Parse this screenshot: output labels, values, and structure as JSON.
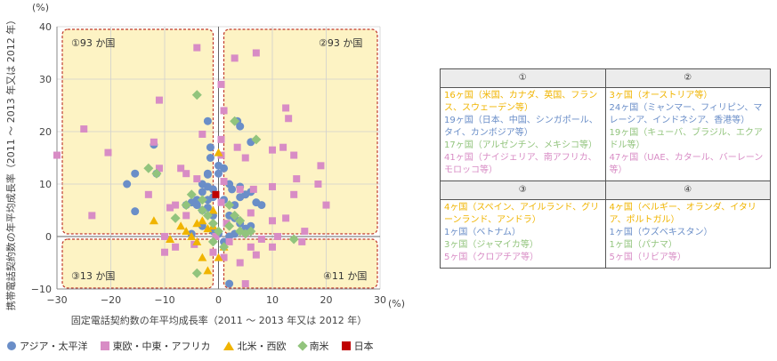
{
  "chart_data": {
    "type": "scatter",
    "xlabel": "固定電話契約数の年平均成長率（2011 ～ 2013 年又は 2012 年）",
    "ylabel": "携帯電話契約数の年平均成長率（2011 ～ 2013 年又は 2012 年）",
    "x_unit": "(%)",
    "y_unit": "(%)",
    "xlim": [
      -30,
      30
    ],
    "ylim": [
      -10,
      40
    ],
    "xticks": [
      "−30",
      "−20",
      "−10",
      "0",
      "10",
      "20",
      "30"
    ],
    "yticks": [
      "−10",
      "0",
      "10",
      "20",
      "30",
      "40"
    ],
    "grid": true,
    "legend_position": "bottom",
    "quadrant_labels": [
      "①93 か国",
      "②93 か国",
      "③13 か国",
      "④11 か国"
    ],
    "series": [
      {
        "name": "アジア・太平洋",
        "marker": "circle",
        "color": "#6a8ec8",
        "points": [
          [
            -12,
            17.5
          ],
          [
            -11.5,
            12
          ],
          [
            -15.5,
            12
          ],
          [
            -17,
            10
          ],
          [
            -15.5,
            4.8
          ],
          [
            -2,
            22
          ],
          [
            -1.5,
            17
          ],
          [
            -1.5,
            15
          ],
          [
            -2,
            12
          ],
          [
            -2,
            11.8
          ],
          [
            -3,
            10
          ],
          [
            -2,
            9.5
          ],
          [
            -1,
            9
          ],
          [
            -3,
            8.5
          ],
          [
            -2,
            7
          ],
          [
            -4,
            7
          ],
          [
            -1,
            7.5
          ],
          [
            -5,
            6.5
          ],
          [
            -4,
            6
          ],
          [
            -2,
            5.5
          ],
          [
            -6,
            6
          ],
          [
            -3,
            5
          ],
          [
            0,
            12
          ],
          [
            0,
            13.5
          ],
          [
            1,
            13
          ],
          [
            2,
            10
          ],
          [
            2.5,
            9
          ],
          [
            4,
            9.5
          ],
          [
            6,
            8.5
          ],
          [
            5,
            8
          ],
          [
            4,
            7.5
          ],
          [
            7,
            6.5
          ],
          [
            8,
            6
          ],
          [
            1,
            7
          ],
          [
            3,
            6
          ],
          [
            -1,
            4
          ],
          [
            2,
            4
          ],
          [
            3,
            3.5
          ],
          [
            4,
            2.5
          ],
          [
            6,
            2
          ],
          [
            -1,
            1
          ],
          [
            0,
            0.5
          ],
          [
            -3,
            2
          ],
          [
            1,
            -1
          ],
          [
            2,
            0
          ],
          [
            3,
            0.5
          ],
          [
            5,
            1.5
          ],
          [
            -5,
            0.5
          ],
          [
            3.5,
            22
          ],
          [
            4,
            21
          ],
          [
            6,
            18
          ],
          [
            2,
            -9
          ]
        ]
      },
      {
        "name": "東欧・中東・アフリカ",
        "marker": "square",
        "color": "#d88cc5",
        "points": [
          [
            -30,
            15.5
          ],
          [
            -25,
            20.5
          ],
          [
            -23.5,
            4
          ],
          [
            -20.5,
            16
          ],
          [
            -11,
            26
          ],
          [
            -12,
            18
          ],
          [
            -11,
            13
          ],
          [
            -13,
            8
          ],
          [
            -4,
            36
          ],
          [
            -4,
            11
          ],
          [
            -3,
            19.5
          ],
          [
            -6,
            12
          ],
          [
            -7,
            13
          ],
          [
            -8,
            6
          ],
          [
            -6,
            4
          ],
          [
            -9,
            5.5
          ],
          [
            -10,
            0
          ],
          [
            -10,
            -3
          ],
          [
            -8,
            -2
          ],
          [
            -4.5,
            -1.5
          ],
          [
            -1,
            -3
          ],
          [
            0.5,
            29
          ],
          [
            1,
            24
          ],
          [
            0.5,
            18.5
          ],
          [
            0.5,
            15.5
          ],
          [
            1,
            10.5
          ],
          [
            0.5,
            6.5
          ],
          [
            1.5,
            2.5
          ],
          [
            2,
            -1
          ],
          [
            1,
            -4
          ],
          [
            3,
            34
          ],
          [
            7,
            35
          ],
          [
            3.5,
            17
          ],
          [
            5,
            15
          ],
          [
            4,
            9
          ],
          [
            6,
            4.5
          ],
          [
            6,
            -2
          ],
          [
            4,
            -5
          ],
          [
            5,
            -9
          ],
          [
            8,
            -0.5
          ],
          [
            10,
            9.5
          ],
          [
            10,
            3
          ],
          [
            11,
            0
          ],
          [
            12.5,
            24.5
          ],
          [
            13,
            22.5
          ],
          [
            12,
            17
          ],
          [
            14,
            15.5
          ],
          [
            14.5,
            11
          ],
          [
            14,
            8
          ],
          [
            12.5,
            3.5
          ],
          [
            10,
            16.5
          ],
          [
            19,
            13.5
          ],
          [
            18.5,
            10
          ],
          [
            20,
            6
          ],
          [
            16,
            1
          ],
          [
            15.5,
            -1
          ],
          [
            7,
            -3.5
          ],
          [
            10,
            -2
          ],
          [
            6.5,
            9
          ],
          [
            5,
            0.5
          ],
          [
            -0.5,
            0
          ]
        ]
      },
      {
        "name": "北米・西欧",
        "marker": "triangle",
        "color": "#f0b400",
        "points": [
          [
            -12,
            3
          ],
          [
            -9,
            -0.5
          ],
          [
            -7,
            2
          ],
          [
            -5,
            0
          ],
          [
            -4,
            -1
          ],
          [
            -3,
            -4
          ],
          [
            -2,
            -6.5
          ],
          [
            -1,
            2
          ],
          [
            0,
            16
          ],
          [
            1,
            -2
          ],
          [
            0,
            -4
          ],
          [
            -1,
            5
          ],
          [
            -3,
            3
          ],
          [
            -2,
            1.5
          ],
          [
            -6,
            1
          ],
          [
            -4,
            2.5
          ]
        ]
      },
      {
        "name": "南米",
        "marker": "diamond",
        "color": "#92c47d",
        "points": [
          [
            -4,
            27
          ],
          [
            -13,
            13
          ],
          [
            -11.5,
            12
          ],
          [
            3,
            22
          ],
          [
            7,
            18.5
          ],
          [
            -6,
            6
          ],
          [
            -3,
            5
          ],
          [
            -2,
            4
          ],
          [
            -1,
            2.5
          ],
          [
            0,
            1
          ],
          [
            2,
            2
          ],
          [
            3,
            4
          ],
          [
            4,
            1
          ],
          [
            5,
            0.5
          ],
          [
            -4,
            -7
          ],
          [
            14,
            -0.5
          ],
          [
            -8,
            3.5
          ],
          [
            -5,
            8
          ],
          [
            -3,
            7
          ],
          [
            2,
            6
          ],
          [
            4,
            3
          ],
          [
            6,
            1
          ],
          [
            -1,
            -1
          ],
          [
            1,
            -2
          ]
        ]
      },
      {
        "name": "日本",
        "marker": "square",
        "color": "#c00000",
        "points": [
          [
            -0.5,
            8
          ]
        ]
      }
    ]
  },
  "table": {
    "headers": [
      "①",
      "②",
      "③",
      "④"
    ],
    "q1": [
      "16ヶ国（米国、カナダ、英国、フランス、スウェーデン等）",
      "19ヶ国（日本、中国、シンガポール、タイ、カンボジア等）",
      "17ヶ国（アルゼンチン、メキシコ等）",
      "41ヶ国（ナイジェリア、南アフリカ、モロッコ等）"
    ],
    "q2": [
      "3ヶ国（オーストリア等）",
      "24ヶ国（ミャンマー、フィリピン、マレーシア、インドネシア、香港等）",
      "19ヶ国（キューバ、ブラジル、エクアドル等）",
      "47ヶ国（UAE、カタール、バーレーン等）"
    ],
    "q3": [
      "4ヶ国（スペイン、アイルランド、グリーンランド、アンドラ）",
      "1ヶ国（ベトナム）",
      "3ヶ国（ジャマイカ等）",
      "5ヶ国（クロアチア等）"
    ],
    "q4": [
      "4ヶ国（ベルギー、オランダ、イタリア、ポルトガル）",
      "1ヶ国（ウズベキスタン）",
      "1ヶ国（パナマ）",
      "5ヶ国（リビア等）"
    ]
  }
}
